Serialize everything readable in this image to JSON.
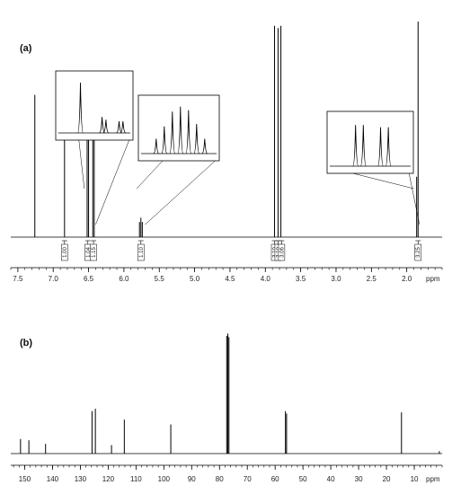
{
  "chart_data": [
    {
      "id": "a",
      "panel_label": "(a)",
      "type": "line",
      "subtype": "1H NMR spectrum",
      "x_unit": "ppm",
      "x_direction": "reversed",
      "xlim": [
        7.6,
        1.5
      ],
      "x_ticks": [
        7.5,
        7.0,
        6.5,
        6.0,
        5.5,
        5.0,
        4.5,
        4.0,
        3.5,
        3.0,
        2.5,
        2.0
      ],
      "x_tick_labels": [
        "7.5",
        "7.0",
        "6.5",
        "6.0",
        "5.5",
        "5.0",
        "4.5",
        "4.0",
        "3.5",
        "3.0",
        "2.5",
        "2.0"
      ],
      "peaks": [
        {
          "ppm": 7.26,
          "rel_height": 0.66
        },
        {
          "ppm": 6.84,
          "rel_height": 0.7
        },
        {
          "ppm": 6.52,
          "rel_height": 0.68
        },
        {
          "ppm": 6.5,
          "rel_height": 0.64
        },
        {
          "ppm": 6.44,
          "rel_height": 0.55
        },
        {
          "ppm": 6.42,
          "rel_height": 0.5
        },
        {
          "ppm": 5.78,
          "rel_height": 0.07
        },
        {
          "ppm": 5.76,
          "rel_height": 0.09
        },
        {
          "ppm": 5.74,
          "rel_height": 0.07
        },
        {
          "ppm": 3.87,
          "rel_height": 0.98
        },
        {
          "ppm": 3.82,
          "rel_height": 0.97
        },
        {
          "ppm": 3.78,
          "rel_height": 0.98
        },
        {
          "ppm": 1.86,
          "rel_height": 0.28
        },
        {
          "ppm": 1.84,
          "rel_height": 1.0
        }
      ],
      "integrals": [
        {
          "ppm": 6.84,
          "label": "1.00"
        },
        {
          "ppm": 6.51,
          "label": "1.04"
        },
        {
          "ppm": 6.43,
          "label": "1.15"
        },
        {
          "ppm": 5.76,
          "label": "1.10"
        },
        {
          "ppm": 3.87,
          "label": "3.10"
        },
        {
          "ppm": 3.82,
          "label": "3.10"
        },
        {
          "ppm": 3.77,
          "label": "3.06"
        },
        {
          "ppm": 1.84,
          "label": "3.25"
        }
      ],
      "insets": [
        {
          "name": "aromatic-zoom",
          "peaks": [
            {
              "pos": 0.32,
              "h": 0.95
            },
            {
              "pos": 0.6,
              "h": 0.3
            },
            {
              "pos": 0.65,
              "h": 0.25
            },
            {
              "pos": 0.82,
              "h": 0.22
            },
            {
              "pos": 0.87,
              "h": 0.22
            }
          ]
        },
        {
          "name": "vinyl-zoom",
          "peaks": [
            {
              "pos": 0.22,
              "h": 0.3
            },
            {
              "pos": 0.32,
              "h": 0.55
            },
            {
              "pos": 0.42,
              "h": 0.85
            },
            {
              "pos": 0.52,
              "h": 0.95
            },
            {
              "pos": 0.62,
              "h": 0.88
            },
            {
              "pos": 0.72,
              "h": 0.6
            },
            {
              "pos": 0.82,
              "h": 0.3
            }
          ]
        },
        {
          "name": "methyl-zoom",
          "peaks": [
            {
              "pos": 0.33,
              "h": 0.9
            },
            {
              "pos": 0.42,
              "h": 0.9
            },
            {
              "pos": 0.62,
              "h": 0.85
            },
            {
              "pos": 0.71,
              "h": 0.85
            }
          ]
        }
      ]
    },
    {
      "id": "b",
      "panel_label": "(b)",
      "type": "line",
      "subtype": "13C NMR spectrum",
      "x_unit": "ppm",
      "x_direction": "reversed",
      "xlim": [
        155,
        0
      ],
      "x_ticks": [
        150,
        140,
        130,
        120,
        110,
        100,
        90,
        80,
        70,
        60,
        50,
        40,
        30,
        20,
        10
      ],
      "x_tick_labels": [
        "150",
        "140",
        "130",
        "120",
        "110",
        "100",
        "90",
        "80",
        "70",
        "60",
        "50",
        "40",
        "30",
        "20",
        "10"
      ],
      "peaks": [
        {
          "ppm": 151.5,
          "rel_height": 0.12
        },
        {
          "ppm": 148.5,
          "rel_height": 0.11
        },
        {
          "ppm": 142.5,
          "rel_height": 0.08
        },
        {
          "ppm": 125.8,
          "rel_height": 0.35
        },
        {
          "ppm": 124.6,
          "rel_height": 0.37
        },
        {
          "ppm": 118.8,
          "rel_height": 0.07
        },
        {
          "ppm": 114.2,
          "rel_height": 0.28
        },
        {
          "ppm": 97.5,
          "rel_height": 0.24
        },
        {
          "ppm": 77.4,
          "rel_height": 0.97
        },
        {
          "ppm": 77.0,
          "rel_height": 0.99
        },
        {
          "ppm": 76.6,
          "rel_height": 0.96
        },
        {
          "ppm": 56.3,
          "rel_height": 0.35
        },
        {
          "ppm": 55.9,
          "rel_height": 0.33
        },
        {
          "ppm": 14.6,
          "rel_height": 0.34
        },
        {
          "ppm": 1.0,
          "rel_height": 0.02
        }
      ]
    }
  ]
}
